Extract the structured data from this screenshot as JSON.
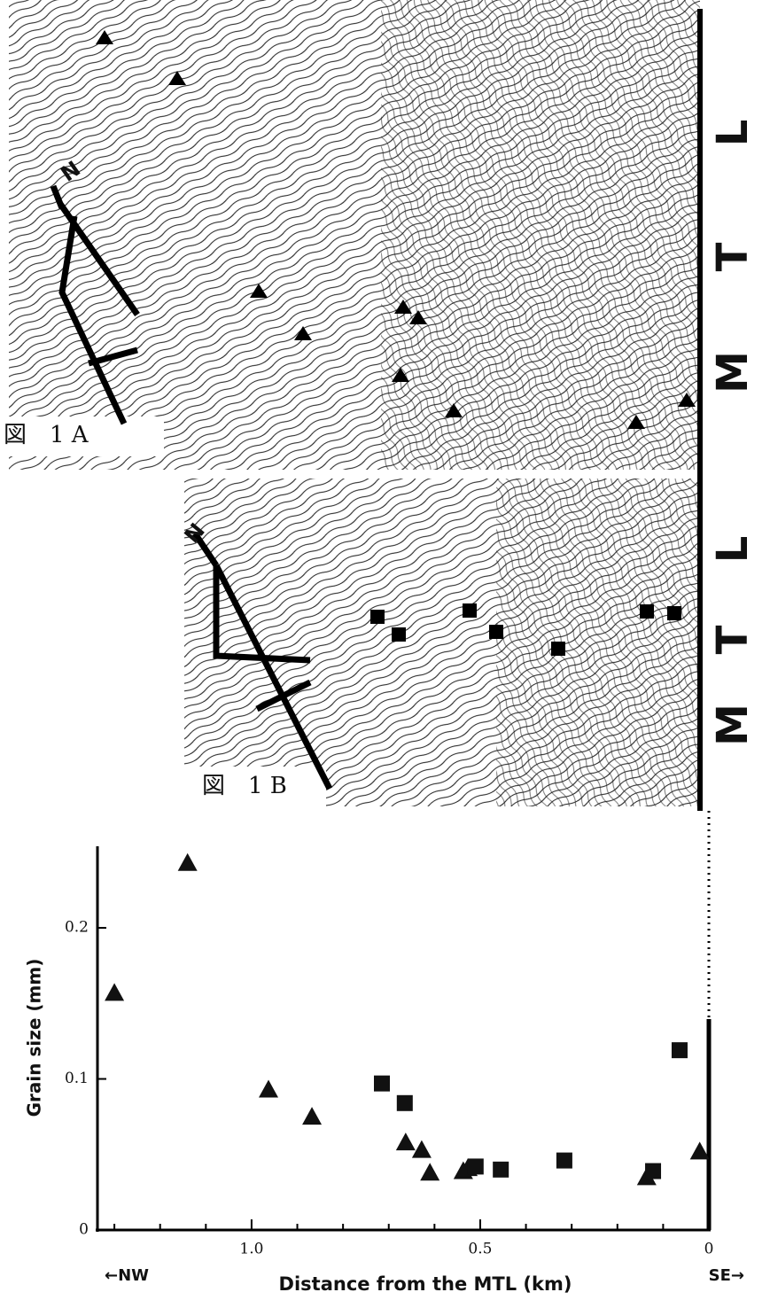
{
  "maps": [
    {
      "label": "図　1 A",
      "north": "N",
      "fault": [
        "M",
        "T",
        "L"
      ]
    },
    {
      "label": "図　1 B",
      "north": "N",
      "fault": [
        "M",
        "T",
        "L"
      ]
    }
  ],
  "chart_data": {
    "type": "scatter",
    "x_label": "Distance from the MTL (km)",
    "y_label": "Grain size (mm)",
    "direction_left": "←NW",
    "direction_right": "SE→",
    "xlim": [
      1.337,
      0
    ],
    "ylim": [
      0,
      0.254
    ],
    "xticks": [
      {
        "value": 1,
        "label": "1.0"
      },
      0.5,
      0
    ],
    "xminor_ticks": [
      1.3,
      1.2,
      1.1,
      0.9,
      0.8,
      0.7,
      0.6,
      0.4,
      0.3,
      0.2,
      0.1
    ],
    "yticks": [
      0,
      0.1,
      0.2
    ],
    "series": [
      {
        "marker": "triangle",
        "color": "#111111",
        "x": [
          1.3,
          1.14,
          0.963,
          0.868,
          0.663,
          0.628,
          0.61,
          0.537,
          0.527,
          0.136,
          0.02
        ],
        "values": [
          0.157,
          0.243,
          0.093,
          0.075,
          0.058,
          0.053,
          0.038,
          0.039,
          0.041,
          0.035,
          0.052
        ]
      },
      {
        "marker": "square",
        "color": "#111111",
        "x": [
          0.715,
          0.665,
          0.51,
          0.455,
          0.316,
          0.122,
          0.064
        ],
        "values": [
          0.097,
          0.084,
          0.042,
          0.04,
          0.046,
          0.039,
          0.119
        ]
      }
    ]
  }
}
